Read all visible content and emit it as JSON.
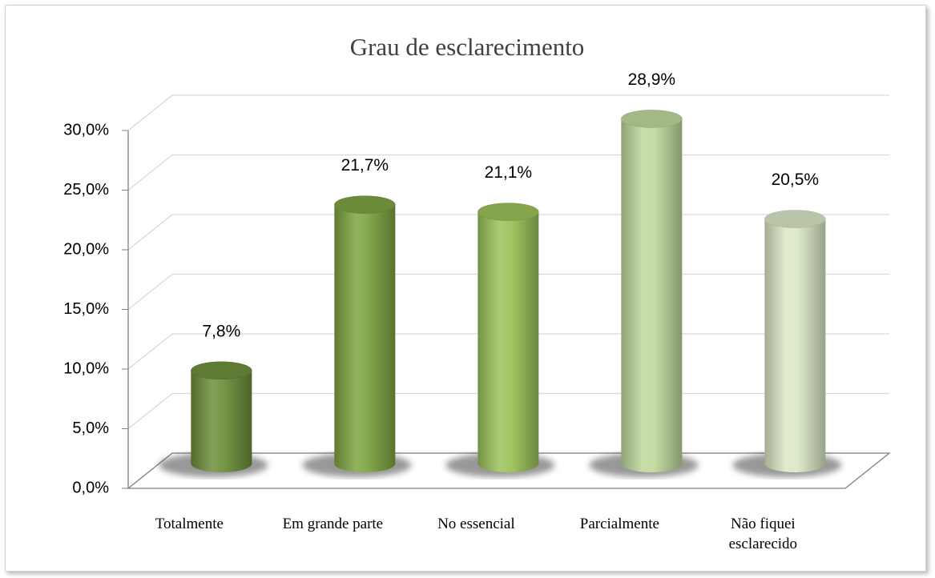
{
  "chart_data": {
    "type": "bar3d",
    "title": "Grau de esclarecimento",
    "categories": [
      "Totalmente",
      "Em grande parte",
      "No essencial",
      "Parcialmente",
      "Não fiquei esclarecido"
    ],
    "values": [
      7.8,
      21.7,
      21.1,
      28.9,
      20.5
    ],
    "value_labels": [
      "7,8%",
      "21,7%",
      "21,1%",
      "28,9%",
      "20,5%"
    ],
    "colors": [
      "#6e8f3c",
      "#7fa443",
      "#9cc25a",
      "#c0d89c",
      "#dbe8c6"
    ],
    "ylim": [
      0,
      30
    ],
    "yticks": [
      {
        "value": 0,
        "label": "0,0%"
      },
      {
        "value": 5,
        "label": "5,0%"
      },
      {
        "value": 10,
        "label": "10,0%"
      },
      {
        "value": 15,
        "label": "15,0%"
      },
      {
        "value": 20,
        "label": "20,0%"
      },
      {
        "value": 25,
        "label": "25,0%"
      },
      {
        "value": 30,
        "label": "30,0%"
      }
    ],
    "grid": true
  }
}
